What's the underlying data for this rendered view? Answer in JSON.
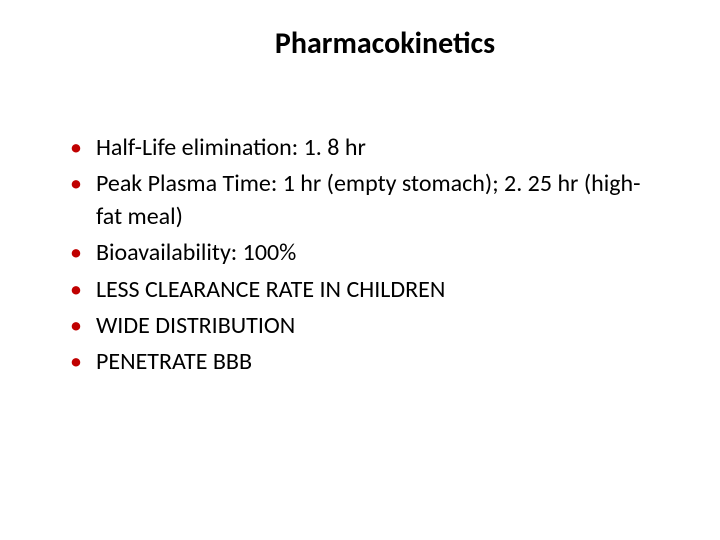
{
  "slide": {
    "title": "Pharmacokinetics",
    "title_fontsize": 30,
    "title_fontweight": "bold",
    "title_color": "#000000",
    "bullets": [
      {
        "text": "Half-Life elimination: 1. 8 hr"
      },
      {
        "text": "Peak Plasma Time: 1 hr (empty stomach); 2. 25 hr (high-fat meal)"
      },
      {
        "text": "Bioavailability: 100%"
      },
      {
        "text": "LESS CLEARANCE RATE IN CHILDREN"
      },
      {
        "text": "WIDE DISTRIBUTION"
      },
      {
        "text": "PENETRATE BBB"
      }
    ],
    "bullet_marker": "•",
    "bullet_marker_color": "#c00000",
    "bullet_text_color": "#000000",
    "bullet_fontsize": 24,
    "background_color": "#ffffff"
  }
}
